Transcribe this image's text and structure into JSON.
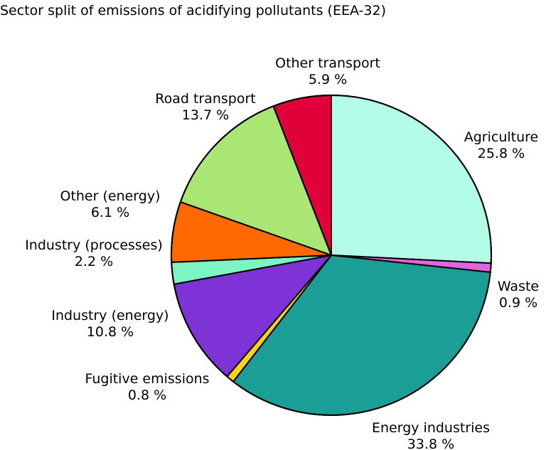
{
  "chart_data": {
    "type": "pie",
    "title": "Sector split of emissions of acidifying pollutants (EEA-32)",
    "slices": [
      {
        "label": "Agriculture",
        "value_label": "25.8 %",
        "value": 25.8,
        "color": "#b3fde8"
      },
      {
        "label": "Waste",
        "value_label": "0.9 %",
        "value": 0.9,
        "color": "#e066e0"
      },
      {
        "label": "Energy industries",
        "value_label": "33.8 %",
        "value": 33.8,
        "color": "#1a9e96"
      },
      {
        "label": "Fugitive emissions",
        "value_label": "0.8 %",
        "value": 0.8,
        "color": "#ffd21a"
      },
      {
        "label": "Industry (energy)",
        "value_label": "10.8 %",
        "value": 10.8,
        "color": "#7d33d6"
      },
      {
        "label": "Industry (processes)",
        "value_label": "2.2 %",
        "value": 2.2,
        "color": "#7df5c3"
      },
      {
        "label": "Other (energy)",
        "value_label": "6.1 %",
        "value": 6.1,
        "color": "#ff6a00"
      },
      {
        "label": "Road transport",
        "value_label": "13.7 %",
        "value": 13.7,
        "color": "#a9e673"
      },
      {
        "label": "Other transport",
        "value_label": "5.9 %",
        "value": 5.9,
        "color": "#e0003a"
      }
    ],
    "start": "12 o'clock",
    "direction": "clockwise",
    "legend": "none"
  }
}
